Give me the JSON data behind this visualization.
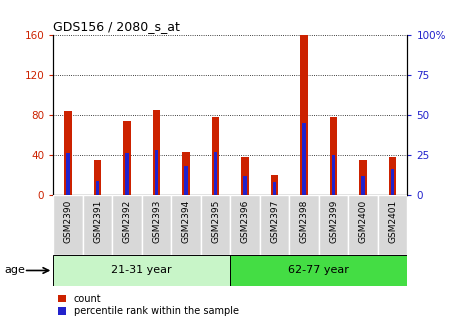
{
  "title": "GDS156 / 2080_s_at",
  "samples": [
    "GSM2390",
    "GSM2391",
    "GSM2392",
    "GSM2393",
    "GSM2394",
    "GSM2395",
    "GSM2396",
    "GSM2397",
    "GSM2398",
    "GSM2399",
    "GSM2400",
    "GSM2401"
  ],
  "counts": [
    84,
    35,
    74,
    85,
    43,
    78,
    38,
    20,
    160,
    78,
    35,
    38
  ],
  "percentiles": [
    26,
    9,
    26,
    28,
    18,
    27,
    12,
    8,
    45,
    25,
    12,
    16
  ],
  "ylim_left": [
    0,
    160
  ],
  "ylim_right": [
    0,
    100
  ],
  "yticks_left": [
    0,
    40,
    80,
    120,
    160
  ],
  "yticks_right": [
    0,
    25,
    50,
    75,
    100
  ],
  "yticklabels_right": [
    "0",
    "25",
    "50",
    "75",
    "100%"
  ],
  "groups": [
    {
      "label": "21-31 year",
      "start": 0,
      "end": 5
    },
    {
      "label": "62-77 year",
      "start": 6,
      "end": 11
    }
  ],
  "group_light_color": "#c8f5c8",
  "group_dark_color": "#44dd44",
  "bar_width": 0.25,
  "blue_bar_width": 0.12,
  "count_color": "#CC2200",
  "percentile_color": "#2222CC",
  "background_color": "#ffffff",
  "grid_color": "#000000",
  "age_label": "age",
  "cell_color": "#d8d8d8",
  "legend_items": [
    {
      "label": "count",
      "color": "#CC2200"
    },
    {
      "label": "percentile rank within the sample",
      "color": "#2222CC"
    }
  ]
}
